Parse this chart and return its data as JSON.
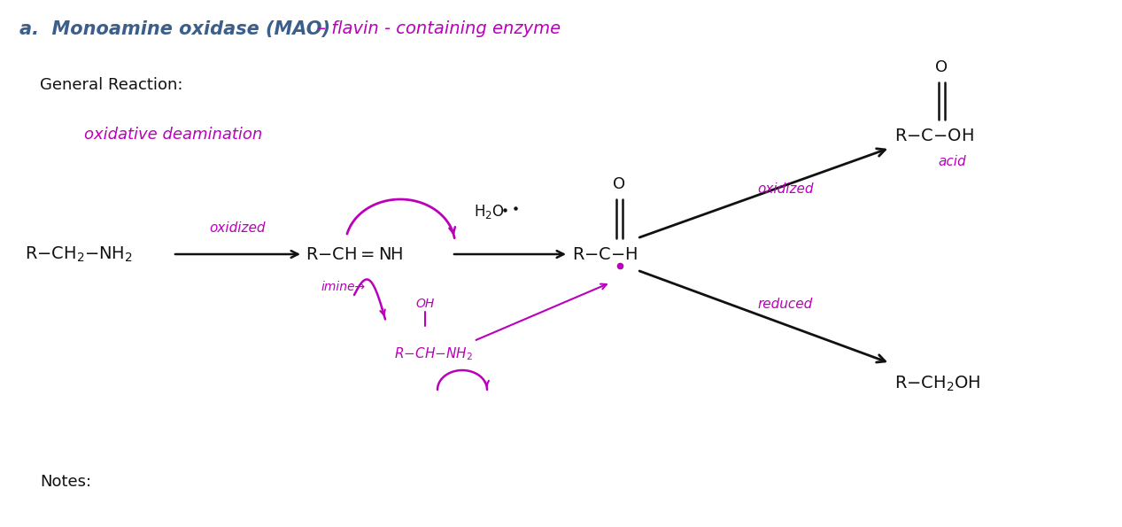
{
  "title_typed": "a.  Monoamine oxidase (MAO)",
  "title_handwritten": " – flavin - containing enzyme",
  "general_reaction_label": "General Reaction:",
  "oxidative_deamination": "oxidative deamination",
  "notes_label": "Notes:",
  "oxidized_label": "oxidized",
  "imine_label": "imine",
  "h2o_label": "H₂O",
  "oxidized_product_label": "oxidized",
  "reduced_product_label": "reduced",
  "acid_label": "acid",
  "bg_color": "#ffffff",
  "typed_color": "#3b5f8a",
  "handwritten_color": "#bb00bb",
  "black_color": "#111111"
}
